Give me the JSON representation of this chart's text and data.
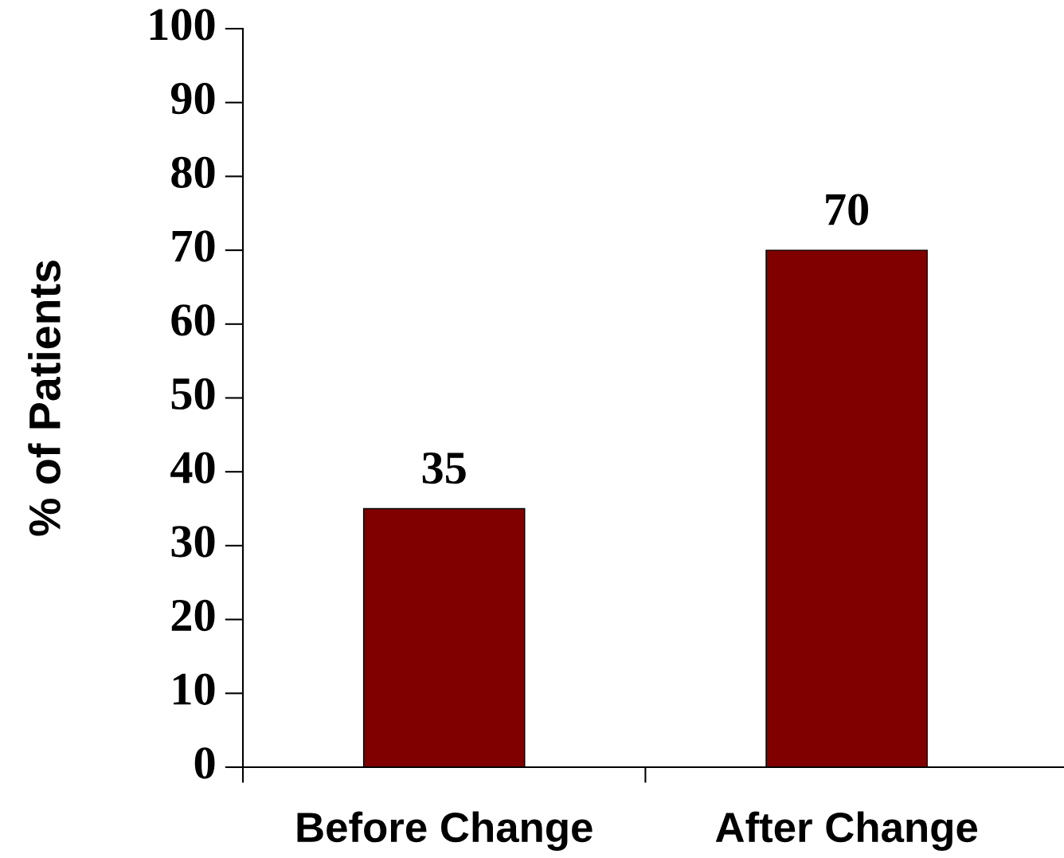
{
  "chart_data": {
    "type": "bar",
    "ylabel": "% of Patients",
    "categories": [
      "Before Change",
      "After Change"
    ],
    "values": [
      35,
      70
    ],
    "color": "#800000",
    "ylim": [
      0,
      100
    ],
    "yticks": [
      0,
      10,
      20,
      30,
      40,
      50,
      60,
      70,
      80,
      90,
      100
    ],
    "data_labels": true,
    "grid": false
  }
}
